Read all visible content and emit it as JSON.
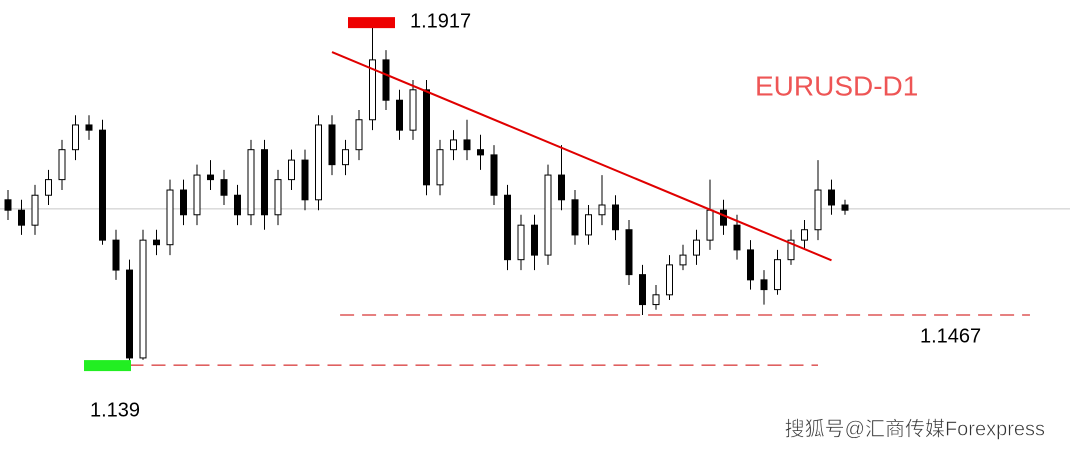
{
  "chart_data": {
    "type": "candlestick",
    "title": "EURUSD-D1",
    "watermark": "搜狐号@汇商传媒Forexpress",
    "ylim": [
      1.1258,
      1.1951
    ],
    "open": [
      1.1644,
      1.1628,
      1.1605,
      1.1651,
      1.1675,
      1.1721,
      1.1759,
      1.1751,
      1.1582,
      1.1536,
      1.1401,
      1.1582,
      1.1575,
      1.1659,
      1.1621,
      1.1682,
      1.1675,
      1.1651,
      1.1621,
      1.1721,
      1.1621,
      1.1675,
      1.1705,
      1.1644,
      1.1759,
      1.1698,
      1.1721,
      1.1767,
      1.1859,
      1.1797,
      1.1751,
      1.1813,
      1.1667,
      1.1721,
      1.1736,
      1.1721,
      1.1713,
      1.1651,
      1.1552,
      1.1605,
      1.1559,
      1.1682,
      1.1644,
      1.159,
      1.1621,
      1.1636,
      1.1598,
      1.1529,
      1.1483,
      1.1498,
      1.1544,
      1.1559,
      1.1582,
      1.1628,
      1.1605,
      1.1567,
      1.1521,
      1.1506,
      1.1552,
      1.1582,
      1.1598,
      1.1659,
      1.1636
    ],
    "high": [
      1.1659,
      1.1644,
      1.1667,
      1.169,
      1.1736,
      1.1774,
      1.1774,
      1.1767,
      1.1598,
      1.1552,
      1.1598,
      1.1598,
      1.1675,
      1.1675,
      1.1698,
      1.1705,
      1.169,
      1.1667,
      1.1736,
      1.1736,
      1.169,
      1.1721,
      1.1721,
      1.1774,
      1.1774,
      1.1736,
      1.1782,
      1.1917,
      1.1874,
      1.1813,
      1.1828,
      1.1828,
      1.1736,
      1.1751,
      1.1767,
      1.1744,
      1.1728,
      1.1667,
      1.1621,
      1.1621,
      1.1698,
      1.1728,
      1.1659,
      1.1636,
      1.1682,
      1.1651,
      1.1613,
      1.1544,
      1.1513,
      1.1559,
      1.1575,
      1.1598,
      1.1675,
      1.1644,
      1.1621,
      1.1582,
      1.1536,
      1.1567,
      1.1598,
      1.1613,
      1.1705,
      1.1675,
      1.1644
    ],
    "low": [
      1.1613,
      1.159,
      1.159,
      1.1636,
      1.1659,
      1.1705,
      1.1736,
      1.1575,
      1.1521,
      1.139,
      1.1398,
      1.1559,
      1.1559,
      1.1605,
      1.1605,
      1.1659,
      1.1636,
      1.1605,
      1.1605,
      1.1598,
      1.1605,
      1.1659,
      1.1628,
      1.1628,
      1.1682,
      1.1682,
      1.1705,
      1.1751,
      1.1782,
      1.1736,
      1.1736,
      1.1651,
      1.1651,
      1.1705,
      1.1705,
      1.169,
      1.1636,
      1.1536,
      1.1536,
      1.1536,
      1.1544,
      1.1628,
      1.1575,
      1.1575,
      1.1605,
      1.1582,
      1.1513,
      1.1467,
      1.1475,
      1.149,
      1.1536,
      1.1544,
      1.1567,
      1.159,
      1.1552,
      1.1506,
      1.1483,
      1.1498,
      1.1544,
      1.1567,
      1.1582,
      1.1621,
      1.1621
    ],
    "close": [
      1.1628,
      1.1605,
      1.1651,
      1.1675,
      1.1721,
      1.1759,
      1.1751,
      1.1582,
      1.1536,
      1.1401,
      1.1582,
      1.1575,
      1.1659,
      1.1621,
      1.1682,
      1.1675,
      1.1651,
      1.1621,
      1.1721,
      1.1621,
      1.1675,
      1.1705,
      1.1644,
      1.1759,
      1.1698,
      1.1721,
      1.1767,
      1.1859,
      1.1797,
      1.1751,
      1.1813,
      1.1667,
      1.1721,
      1.1736,
      1.1721,
      1.1713,
      1.1651,
      1.1552,
      1.1605,
      1.1559,
      1.1682,
      1.1644,
      1.159,
      1.1621,
      1.1636,
      1.1598,
      1.1529,
      1.1483,
      1.1498,
      1.1544,
      1.1559,
      1.1582,
      1.1628,
      1.1605,
      1.1567,
      1.1521,
      1.1506,
      1.1552,
      1.1582,
      1.1598,
      1.1659,
      1.1636,
      1.1628
    ],
    "last_price": 1.163,
    "trendline": {
      "x": [
        24,
        61
      ],
      "y": [
        1.1871,
        1.1551
      ],
      "color": "#e00000"
    },
    "levels": [
      {
        "value": 1.1917,
        "marker_color": "#ee0000"
      },
      {
        "value": 1.1467,
        "line_x": [
          24.6,
          75.7
        ],
        "line_color": "#cc0000"
      },
      {
        "value": 1.139,
        "marker_color": "#22ee22",
        "line_x": [
          9,
          60
        ],
        "line_color": "#cc0000"
      }
    ]
  }
}
